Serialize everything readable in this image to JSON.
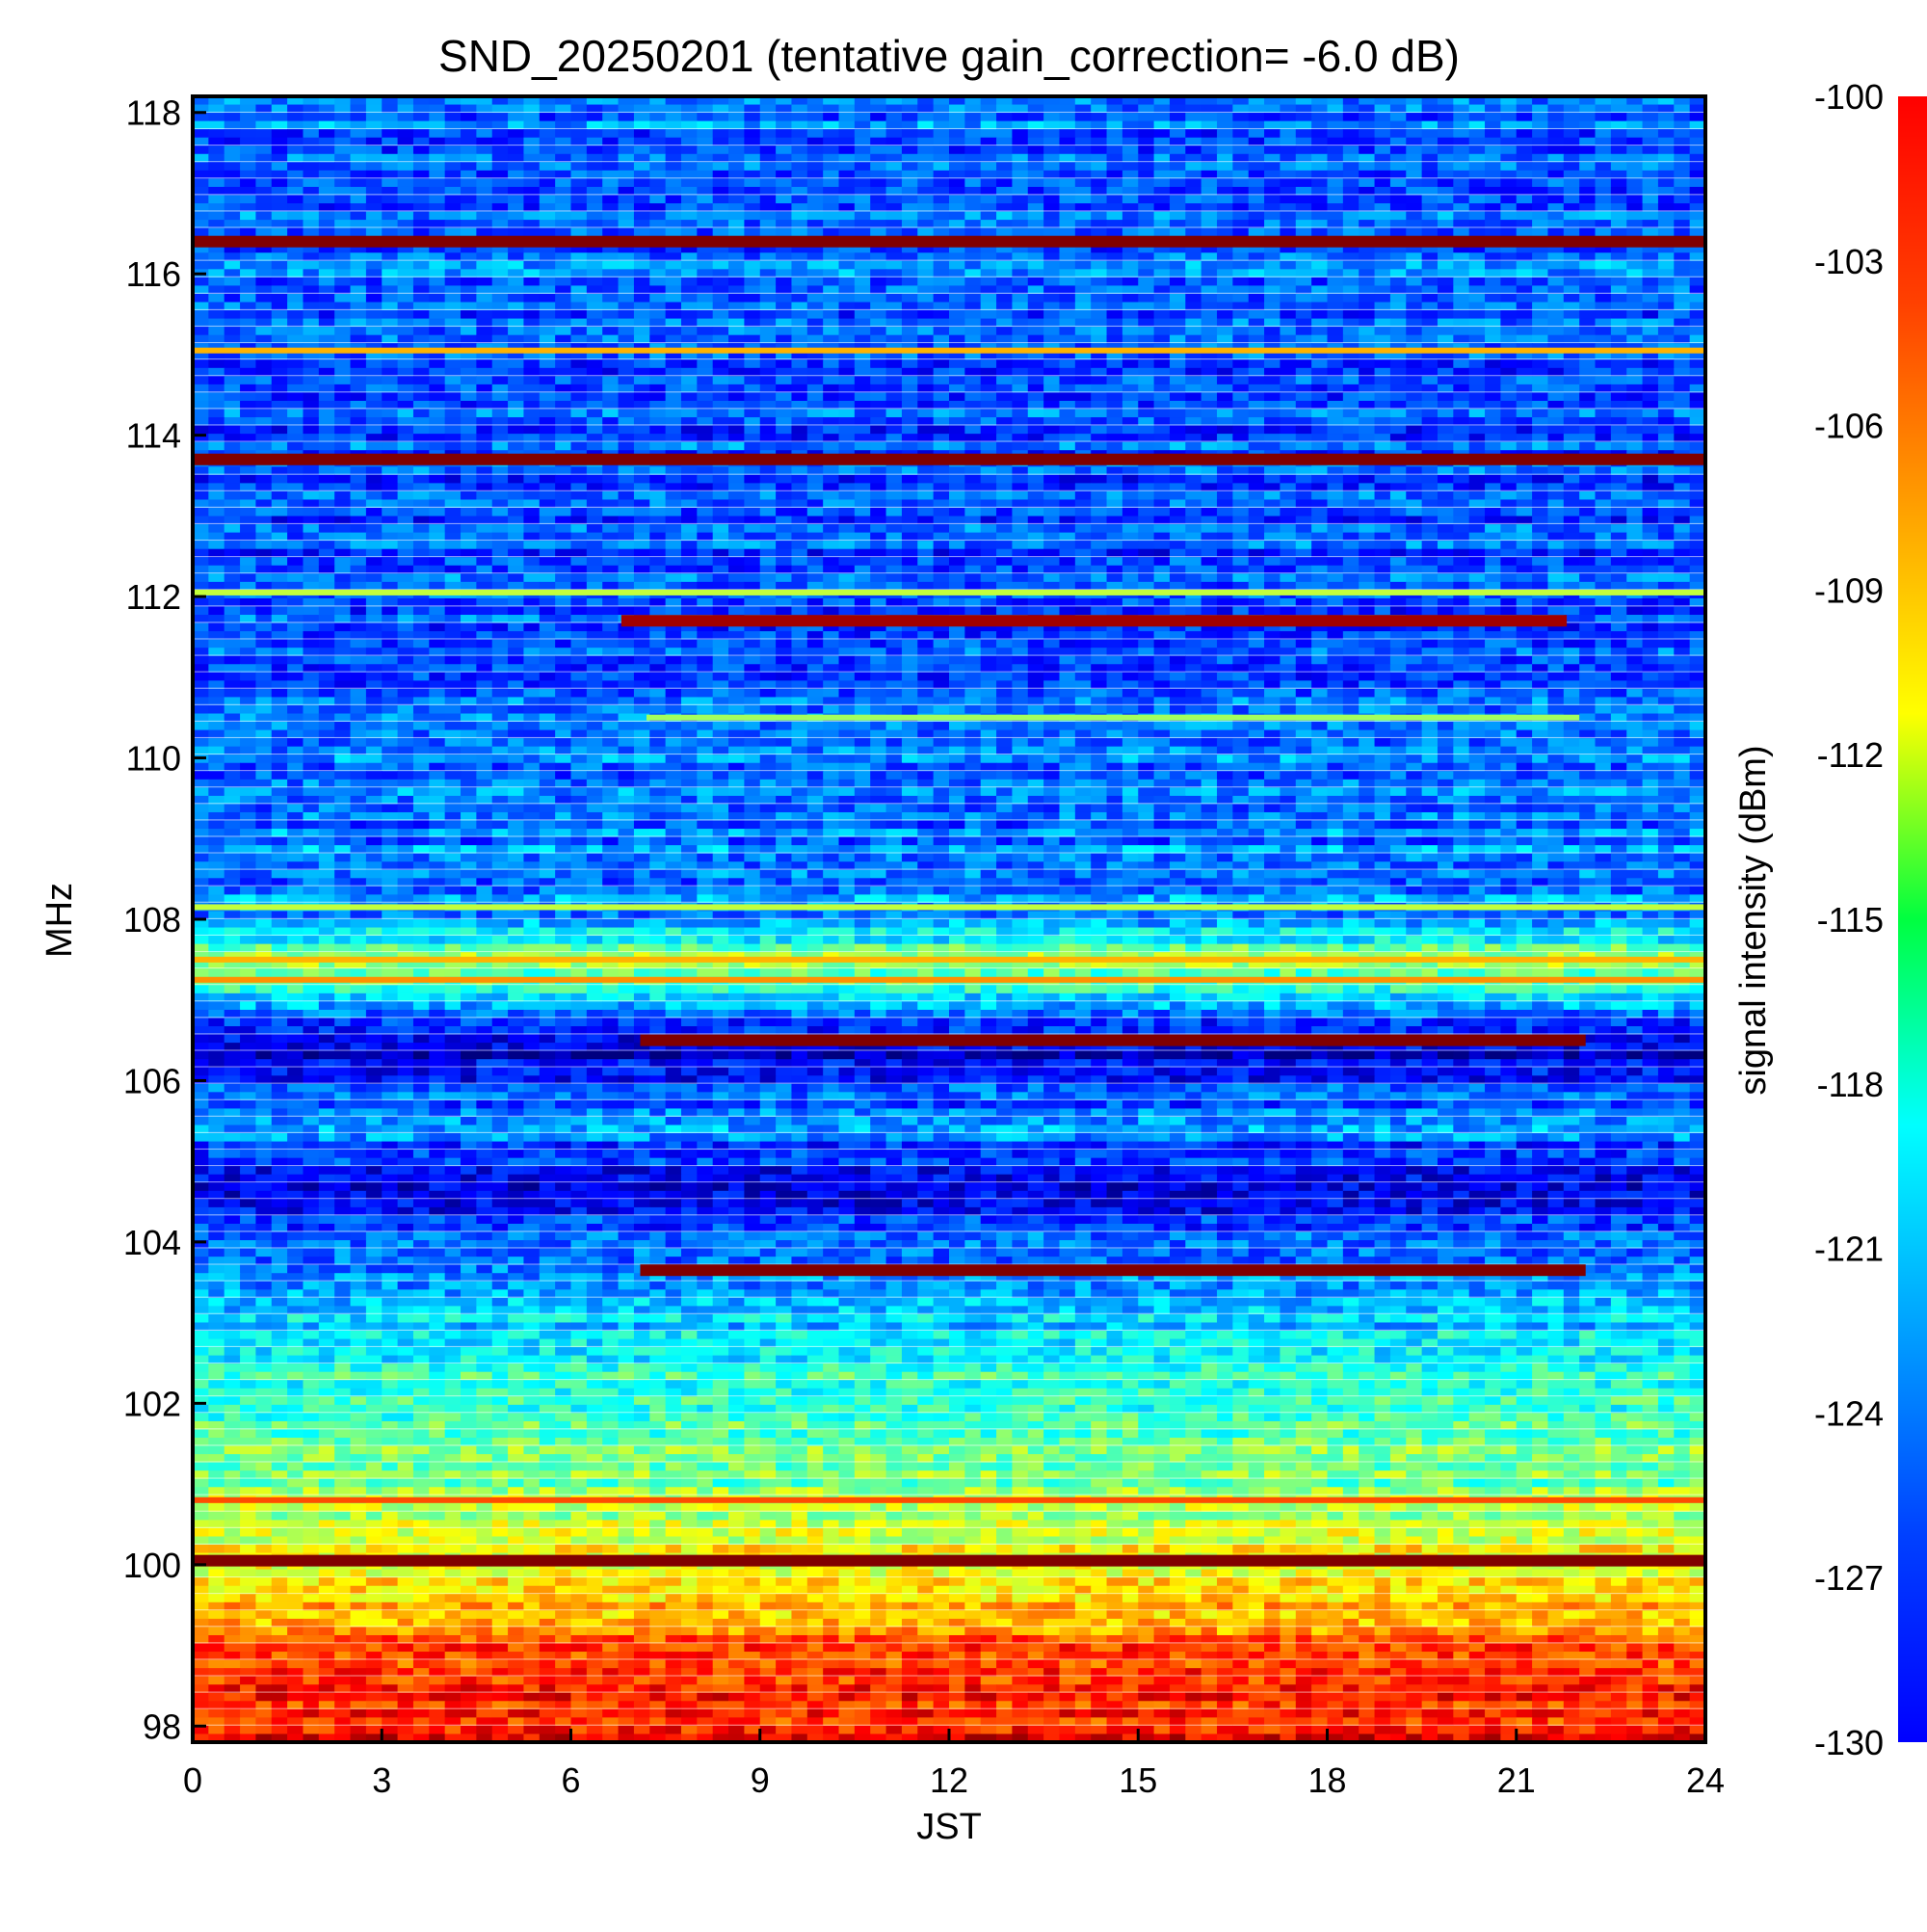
{
  "chart_data": {
    "type": "heatmap",
    "title": "SND_20250201 (tentative gain_correction= -6.0 dB)",
    "xlabel": "JST",
    "ylabel": "MHz",
    "colorbar_label": "signal intensity (dBm)",
    "xlim": [
      0,
      24
    ],
    "ylim": [
      97.8,
      118.2
    ],
    "x_ticks": [
      "0",
      "3",
      "6",
      "9",
      "12",
      "15",
      "18",
      "21",
      "24"
    ],
    "x_tick_values": [
      0,
      3,
      6,
      9,
      12,
      15,
      18,
      21,
      24
    ],
    "y_ticks": [
      "98",
      "100",
      "102",
      "104",
      "106",
      "108",
      "110",
      "112",
      "114",
      "116",
      "118"
    ],
    "y_tick_values": [
      98,
      100,
      102,
      104,
      106,
      108,
      110,
      112,
      114,
      116,
      118
    ],
    "colorbar_ticks": [
      "-100",
      "-103",
      "-106",
      "-109",
      "-112",
      "-115",
      "-118",
      "-121",
      "-124",
      "-127",
      "-130"
    ],
    "colorbar_tick_values": [
      -100,
      -103,
      -106,
      -109,
      -112,
      -115,
      -118,
      -121,
      -124,
      -127,
      -130
    ],
    "color_range": [
      -130,
      -100
    ],
    "colormap": "jet",
    "colorbar_position": "right",
    "grid": false,
    "background_profile": [
      {
        "mhz": 97.8,
        "dbm": -104
      },
      {
        "mhz": 98.5,
        "dbm": -105
      },
      {
        "mhz": 99.3,
        "dbm": -108
      },
      {
        "mhz": 100.0,
        "dbm": -111
      },
      {
        "mhz": 101.0,
        "dbm": -115
      },
      {
        "mhz": 102.0,
        "dbm": -117
      },
      {
        "mhz": 103.0,
        "dbm": -120
      },
      {
        "mhz": 103.6,
        "dbm": -121
      },
      {
        "mhz": 104.0,
        "dbm": -124
      },
      {
        "mhz": 104.6,
        "dbm": -127
      },
      {
        "mhz": 105.0,
        "dbm": -125
      },
      {
        "mhz": 105.5,
        "dbm": -122
      },
      {
        "mhz": 106.0,
        "dbm": -125
      },
      {
        "mhz": 106.4,
        "dbm": -128
      },
      {
        "mhz": 107.0,
        "dbm": -120
      },
      {
        "mhz": 107.5,
        "dbm": -114
      },
      {
        "mhz": 108.0,
        "dbm": -122
      },
      {
        "mhz": 110.0,
        "dbm": -123
      },
      {
        "mhz": 112.0,
        "dbm": -124
      },
      {
        "mhz": 114.0,
        "dbm": -124
      },
      {
        "mhz": 116.0,
        "dbm": -123
      },
      {
        "mhz": 118.2,
        "dbm": -123
      }
    ],
    "signals": [
      {
        "mhz": 116.4,
        "start": 0,
        "end": 24,
        "dbm": -100
      },
      {
        "mhz": 115.05,
        "start": 0,
        "end": 24,
        "dbm": -109
      },
      {
        "mhz": 113.7,
        "start": 0,
        "end": 24,
        "dbm": -100
      },
      {
        "mhz": 112.05,
        "start": 0,
        "end": 24,
        "dbm": -113
      },
      {
        "mhz": 111.7,
        "start": 6.8,
        "end": 21.8,
        "dbm": -101
      },
      {
        "mhz": 110.5,
        "start": 7.2,
        "end": 22.0,
        "dbm": -114
      },
      {
        "mhz": 108.15,
        "start": 0,
        "end": 24,
        "dbm": -113
      },
      {
        "mhz": 107.5,
        "start": 0,
        "end": 24,
        "dbm": -109
      },
      {
        "mhz": 107.25,
        "start": 0,
        "end": 24,
        "dbm": -108
      },
      {
        "mhz": 106.5,
        "start": 7.1,
        "end": 22.1,
        "dbm": -100
      },
      {
        "mhz": 103.65,
        "start": 7.1,
        "end": 22.1,
        "dbm": -100
      },
      {
        "mhz": 100.8,
        "start": 0,
        "end": 24,
        "dbm": -106
      },
      {
        "mhz": 100.05,
        "start": 0,
        "end": 24,
        "dbm": -100
      }
    ]
  }
}
